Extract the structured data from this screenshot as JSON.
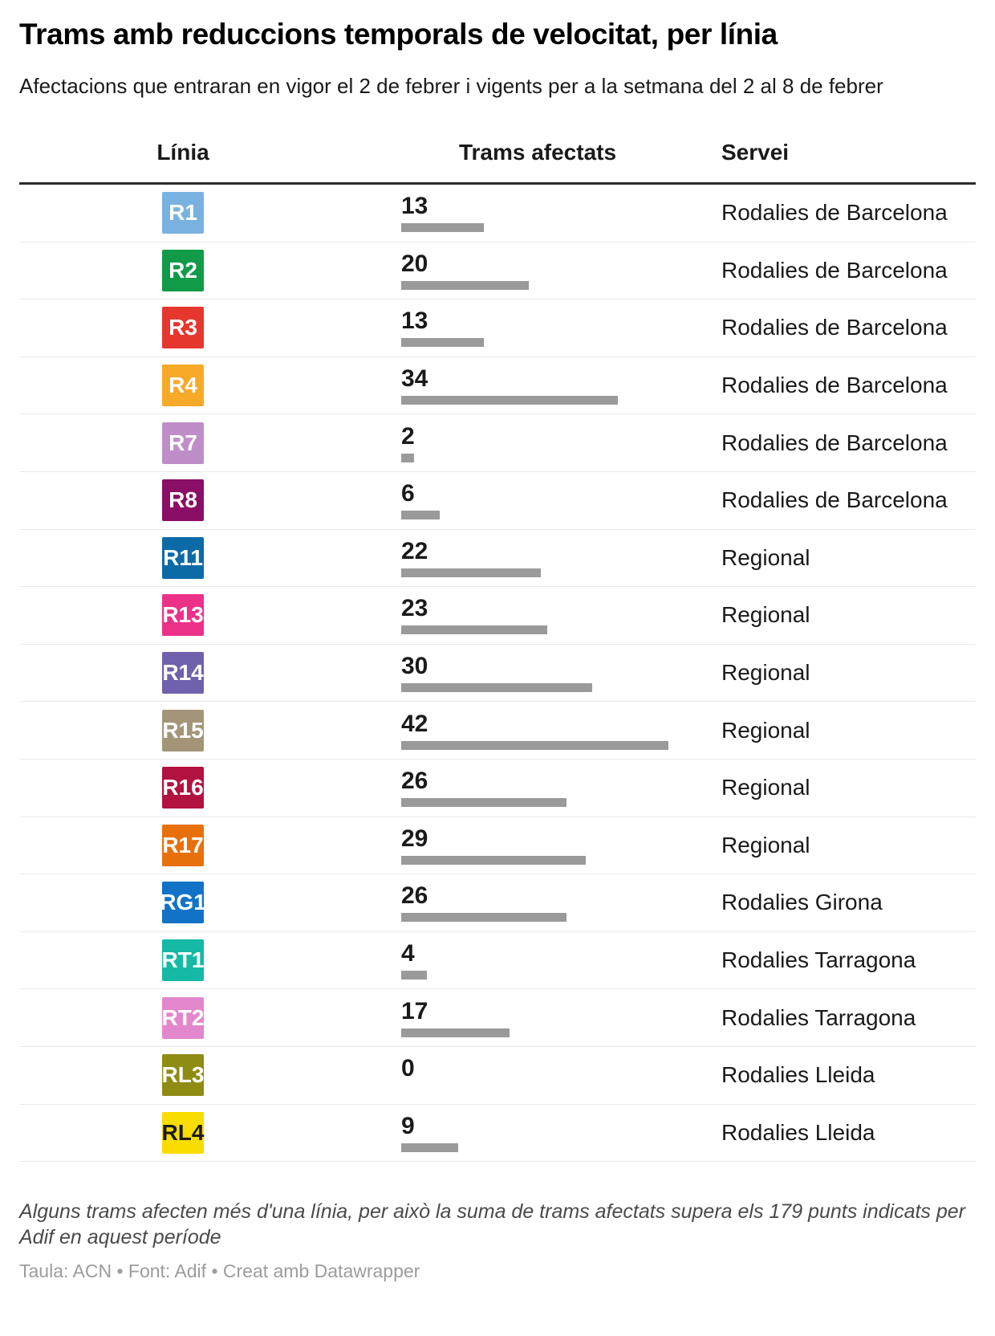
{
  "header": {
    "title": "Trams amb reduccions temporals de velocitat, per línia",
    "subtitle": "Afectacions que entraran en vigor el 2 de febrer i vigents per a la setmana del 2 al 8 de febrer"
  },
  "table": {
    "columns": [
      "Línia",
      "Trams afectats",
      "Servei"
    ],
    "max_value": 42,
    "bar_color": "#9a9a9a",
    "badge_text_default": "#ffffff",
    "rows": [
      {
        "line": "R1",
        "color": "#79b2e0",
        "value": 13,
        "service": "Rodalies de Barcelona"
      },
      {
        "line": "R2",
        "color": "#119b49",
        "value": 20,
        "service": "Rodalies de Barcelona"
      },
      {
        "line": "R3",
        "color": "#e6372e",
        "value": 13,
        "service": "Rodalies de Barcelona"
      },
      {
        "line": "R4",
        "color": "#f7a928",
        "value": 34,
        "service": "Rodalies de Barcelona"
      },
      {
        "line": "R7",
        "color": "#bf8ec8",
        "value": 2,
        "service": "Rodalies de Barcelona"
      },
      {
        "line": "R8",
        "color": "#8a0e66",
        "value": 6,
        "service": "Rodalies de Barcelona"
      },
      {
        "line": "R11",
        "color": "#0c6aa7",
        "value": 22,
        "service": "Regional"
      },
      {
        "line": "R13",
        "color": "#ec3189",
        "value": 23,
        "service": "Regional"
      },
      {
        "line": "R14",
        "color": "#7160ab",
        "value": 30,
        "service": "Regional"
      },
      {
        "line": "R15",
        "color": "#a39678",
        "value": 42,
        "service": "Regional"
      },
      {
        "line": "R16",
        "color": "#b2123f",
        "value": 26,
        "service": "Regional"
      },
      {
        "line": "R17",
        "color": "#e7700d",
        "value": 29,
        "service": "Regional"
      },
      {
        "line": "RG1",
        "color": "#1273c6",
        "value": 26,
        "service": "Rodalies Girona"
      },
      {
        "line": "RT1",
        "color": "#15b9a6",
        "value": 4,
        "service": "Rodalies Tarragona"
      },
      {
        "line": "RT2",
        "color": "#e387cc",
        "value": 17,
        "service": "Rodalies Tarragona"
      },
      {
        "line": "RL3",
        "color": "#8f8c14",
        "value": 0,
        "service": "Rodalies Lleida"
      },
      {
        "line": "RL4",
        "color": "#f9dc00",
        "text": "#1a1a1a",
        "value": 9,
        "service": "Rodalies Lleida"
      }
    ]
  },
  "footer": {
    "note": "Alguns trams afecten més d'una línia, per això la suma de trams afectats supera els 179 punts indicats per Adif en aquest període",
    "credits": "Taula: ACN • Font: Adif • Creat amb Datawrapper"
  },
  "chart_data": {
    "type": "table",
    "title": "Trams amb reduccions temporals de velocitat, per línia",
    "subtitle": "Afectacions que entraran en vigor el 2 de febrer i vigents per a la setmana del 2 al 8 de febrer",
    "columns": [
      "Línia",
      "Trams afectats",
      "Servei"
    ],
    "bar_column": "Trams afectats",
    "bar_range": [
      0,
      42
    ],
    "rows": [
      [
        "R1",
        13,
        "Rodalies de Barcelona"
      ],
      [
        "R2",
        20,
        "Rodalies de Barcelona"
      ],
      [
        "R3",
        13,
        "Rodalies de Barcelona"
      ],
      [
        "R4",
        34,
        "Rodalies de Barcelona"
      ],
      [
        "R7",
        2,
        "Rodalies de Barcelona"
      ],
      [
        "R8",
        6,
        "Rodalies de Barcelona"
      ],
      [
        "R11",
        22,
        "Regional"
      ],
      [
        "R13",
        23,
        "Regional"
      ],
      [
        "R14",
        30,
        "Regional"
      ],
      [
        "R15",
        42,
        "Regional"
      ],
      [
        "R16",
        26,
        "Regional"
      ],
      [
        "R17",
        29,
        "Regional"
      ],
      [
        "RG1",
        26,
        "Rodalies Girona"
      ],
      [
        "RT1",
        4,
        "Rodalies Tarragona"
      ],
      [
        "RT2",
        17,
        "Rodalies Tarragona"
      ],
      [
        "RL3",
        0,
        "Rodalies Lleida"
      ],
      [
        "RL4",
        9,
        "Rodalies Lleida"
      ]
    ],
    "note": "Alguns trams afecten més d'una línia, per això la suma de trams afectats supera els 179 punts indicats per Adif en aquest període",
    "source": "Taula: ACN • Font: Adif • Creat amb Datawrapper"
  }
}
